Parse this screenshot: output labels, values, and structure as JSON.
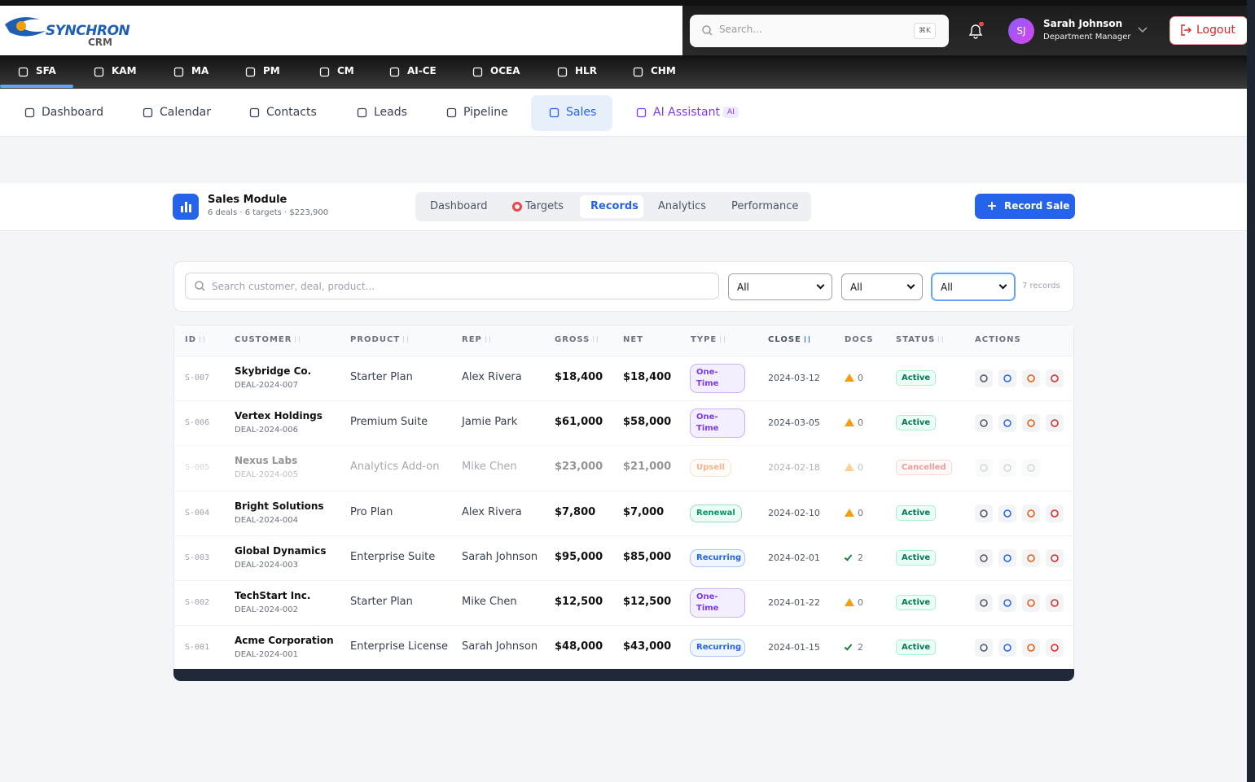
{
  "header": {
    "logo": "SYNCHRON",
    "logo_sub": "CRM",
    "search_placeholder": "Search...",
    "shortcut": "⌘K",
    "user_initials": "SJ",
    "user_name": "Sarah Johnson",
    "user_role": "Department Manager",
    "logout": "Logout"
  },
  "module_nav": [
    "SFA",
    "KAM",
    "MA",
    "PM",
    "CM",
    "AI-CE",
    "OCEA",
    "HLR",
    "CHM"
  ],
  "sub_nav": {
    "items": [
      "Dashboard",
      "Calendar",
      "Contacts",
      "Leads",
      "Pipeline",
      "Sales",
      "AI Assistant"
    ],
    "ai_badge": "AI"
  },
  "module_header": {
    "title": "Sales Module",
    "subtitle": "6 deals · 6 targets · $223,900",
    "tabs": [
      "Dashboard",
      "Targets",
      "Records",
      "Analytics",
      "Performance"
    ],
    "action": "Record Sale"
  },
  "filters": {
    "search_placeholder": "Search customer, deal, product...",
    "selects": [
      "All",
      "All",
      "All"
    ],
    "count": "7 records"
  },
  "table": {
    "columns": [
      "ID",
      "CUSTOMER",
      "PRODUCT",
      "REP",
      "GROSS",
      "NET",
      "TYPE",
      "CLOSE",
      "DOCS",
      "STATUS",
      "ACTIONS"
    ],
    "rows": [
      {
        "id": "S-007",
        "customer": "Skybridge Co.",
        "deal": "DEAL-2024-007",
        "product": "Starter Plan",
        "rep": "Alex Rivera",
        "gross": "$18,400",
        "net": "$18,400",
        "type": "One-Time",
        "close": "2024-03-12",
        "docs": "0",
        "status": "Active"
      },
      {
        "id": "S-006",
        "customer": "Vertex Holdings",
        "deal": "DEAL-2024-006",
        "product": "Premium Suite",
        "rep": "Jamie Park",
        "gross": "$61,000",
        "net": "$58,000",
        "type": "One-Time",
        "close": "2024-03-05",
        "docs": "0",
        "status": "Active"
      },
      {
        "id": "S-005",
        "customer": "Nexus Labs",
        "deal": "DEAL-2024-005",
        "product": "Analytics Add-on",
        "rep": "Mike Chen",
        "gross": "$23,000",
        "net": "$21,000",
        "type": "Upsell",
        "close": "2024-02-18",
        "docs": "0",
        "status": "Cancelled"
      },
      {
        "id": "S-004",
        "customer": "Bright Solutions",
        "deal": "DEAL-2024-004",
        "product": "Pro Plan",
        "rep": "Alex Rivera",
        "gross": "$7,800",
        "net": "$7,000",
        "type": "Renewal",
        "close": "2024-02-10",
        "docs": "0",
        "status": "Active"
      },
      {
        "id": "S-003",
        "customer": "Global Dynamics",
        "deal": "DEAL-2024-003",
        "product": "Enterprise Suite",
        "rep": "Sarah Johnson",
        "gross": "$95,000",
        "net": "$85,000",
        "type": "Recurring",
        "close": "2024-02-01",
        "docs": "2",
        "status": "Active"
      },
      {
        "id": "S-002",
        "customer": "TechStart Inc.",
        "deal": "DEAL-2024-002",
        "product": "Starter Plan",
        "rep": "Mike Chen",
        "gross": "$12,500",
        "net": "$12,500",
        "type": "One-Time",
        "close": "2024-01-22",
        "docs": "0",
        "status": "Active"
      },
      {
        "id": "S-001",
        "customer": "Acme Corporation",
        "deal": "DEAL-2024-001",
        "product": "Enterprise License",
        "rep": "Sarah Johnson",
        "gross": "$48,000",
        "net": "$43,000",
        "type": "Recurring",
        "close": "2024-01-15",
        "docs": "2",
        "status": "Active"
      }
    ]
  }
}
